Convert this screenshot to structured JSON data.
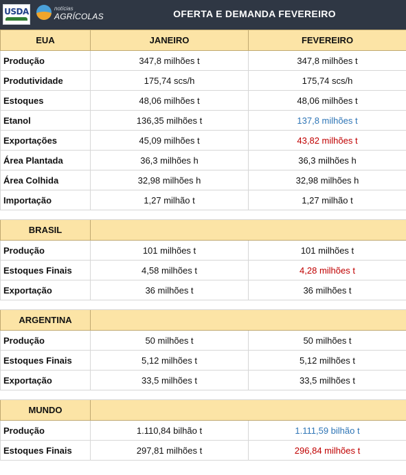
{
  "header": {
    "usda_logo_text": "USDA",
    "na_logo_small": "notícias",
    "na_logo_big": "AGRÍCOLAS",
    "title": "OFERTA E DEMANDA FEVEREIRO"
  },
  "colors": {
    "header_bg": "#2f3744",
    "section_bg": "#fce4a6",
    "blue": "#2e75b6",
    "red": "#c00000"
  },
  "eua": {
    "label": "EUA",
    "col1": "JANEIRO",
    "col2": "FEVEREIRO",
    "rows": [
      {
        "label": "Produção",
        "jan": "347,8 milhões t",
        "fev": "347,8 milhões t",
        "fev_color": "default"
      },
      {
        "label": "Produtividade",
        "jan": "175,74 scs/h",
        "fev": "175,74 scs/h",
        "fev_color": "default"
      },
      {
        "label": "Estoques",
        "jan": "48,06 milhões t",
        "fev": "48,06 milhões t",
        "fev_color": "default"
      },
      {
        "label": "Etanol",
        "jan": "136,35 milhões t",
        "fev": "137,8 milhões t",
        "fev_color": "blue"
      },
      {
        "label": "Exportações",
        "jan": "45,09 milhões t",
        "fev": "43,82 milhões t",
        "fev_color": "red"
      },
      {
        "label": "Área Plantada",
        "jan": "36,3 milhões h",
        "fev": "36,3 milhões h",
        "fev_color": "default"
      },
      {
        "label": "Área Colhida",
        "jan": "32,98 milhões h",
        "fev": "32,98 milhões h",
        "fev_color": "default"
      },
      {
        "label": "Importação",
        "jan": "1,27 milhão t",
        "fev": "1,27 milhão t",
        "fev_color": "default"
      }
    ]
  },
  "brasil": {
    "label": "BRASIL",
    "rows": [
      {
        "label": "Produção",
        "jan": "101 milhões t",
        "fev": "101 milhões t",
        "fev_color": "default"
      },
      {
        "label": "Estoques Finais",
        "jan": "4,58 milhões t",
        "fev": "4,28 milhões t",
        "fev_color": "red"
      },
      {
        "label": "Exportação",
        "jan": "36 milhões t",
        "fev": "36 milhões t",
        "fev_color": "default"
      }
    ]
  },
  "argentina": {
    "label": "ARGENTINA",
    "rows": [
      {
        "label": "Produção",
        "jan": "50 milhões t",
        "fev": "50 milhões t",
        "fev_color": "default"
      },
      {
        "label": "Estoques Finais",
        "jan": "5,12 milhões t",
        "fev": "5,12 milhões t",
        "fev_color": "default"
      },
      {
        "label": "Exportação",
        "jan": "33,5 milhões t",
        "fev": "33,5 milhões t",
        "fev_color": "default"
      }
    ]
  },
  "mundo": {
    "label": "MUNDO",
    "rows": [
      {
        "label": "Produção",
        "jan": "1.110,84 bilhão t",
        "fev": "1.111,59 bilhão t",
        "fev_color": "blue"
      },
      {
        "label": "Estoques Finais",
        "jan": "297,81 milhões t",
        "fev": "296,84 milhões t",
        "fev_color": "red"
      }
    ]
  }
}
